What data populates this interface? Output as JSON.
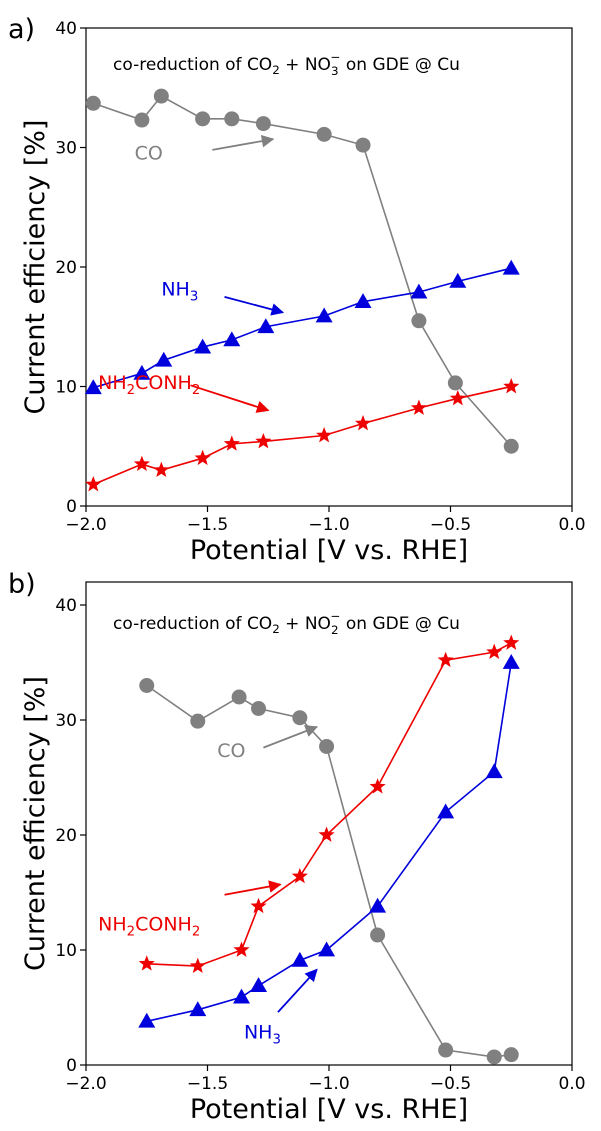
{
  "chart_data": [
    {
      "type": "line",
      "panel_label": "a)",
      "title_parts": [
        "co-reduction of CO",
        "2",
        " + NO",
        "3",
        "−",
        " on GDE @ Cu"
      ],
      "xlabel": "Potential [V vs. RHE]",
      "ylabel": "Current efficiency [%]",
      "xlim": [
        -2.0,
        0.0
      ],
      "ylim": [
        0,
        40
      ],
      "xticks": [
        -2.0,
        -1.5,
        -1.0,
        -0.5,
        0.0
      ],
      "xtick_labels": [
        "−2.0",
        "−1.5",
        "−1.0",
        "−0.5",
        "0.0"
      ],
      "yticks": [
        0,
        10,
        20,
        30,
        40
      ],
      "ytick_labels": [
        "0",
        "10",
        "20",
        "30",
        "40"
      ],
      "series": [
        {
          "label": "CO",
          "color": "#808080",
          "marker": "circle",
          "x": [
            -1.97,
            -1.77,
            -1.69,
            -1.52,
            -1.4,
            -1.27,
            -1.02,
            -0.86,
            -0.63,
            -0.48,
            -0.25
          ],
          "y": [
            33.7,
            32.3,
            34.3,
            32.4,
            32.4,
            32.0,
            31.1,
            30.2,
            15.5,
            10.3,
            5.0
          ],
          "label_pos": [
            -1.8,
            29.0
          ],
          "arrow": [
            [
              -1.48,
              29.8
            ],
            [
              -1.23,
              30.7
            ]
          ]
        },
        {
          "label_parts": [
            "NH",
            "3",
            ""
          ],
          "color": "#0000dd",
          "marker": "triangle",
          "x": [
            -1.97,
            -1.77,
            -1.68,
            -1.52,
            -1.4,
            -1.26,
            -1.02,
            -0.86,
            -0.63,
            -0.47,
            -0.25
          ],
          "y": [
            9.9,
            11.1,
            12.2,
            13.3,
            13.9,
            15.0,
            15.9,
            17.1,
            17.9,
            18.8,
            19.9
          ],
          "label_pos": [
            -1.69,
            17.6
          ],
          "arrow": [
            [
              -1.43,
              17.5
            ],
            [
              -1.19,
              16.2
            ]
          ]
        },
        {
          "label_parts": [
            "NH",
            "2",
            "CONH",
            "2",
            ""
          ],
          "color": "#ee0000",
          "marker": "star",
          "x": [
            -1.97,
            -1.77,
            -1.69,
            -1.52,
            -1.4,
            -1.27,
            -1.02,
            -0.86,
            -0.63,
            -0.47,
            -0.25
          ],
          "y": [
            1.8,
            3.5,
            3.0,
            4.0,
            5.2,
            5.4,
            5.9,
            6.9,
            8.2,
            9.0,
            10.0
          ],
          "label_pos": [
            -1.95,
            9.8
          ],
          "arrow": [
            [
              -1.57,
              10.1
            ],
            [
              -1.25,
              8.0
            ]
          ]
        }
      ]
    },
    {
      "type": "line",
      "panel_label": "b)",
      "title_parts": [
        "co-reduction of CO",
        "2",
        " + NO",
        "2",
        "−",
        " on GDE @ Cu"
      ],
      "xlabel": "Potential [V vs. RHE]",
      "ylabel": "Current efficiency [%]",
      "xlim": [
        -2.0,
        0.0
      ],
      "ylim": [
        0,
        42
      ],
      "xticks": [
        -2.0,
        -1.5,
        -1.0,
        -0.5,
        0.0
      ],
      "xtick_labels": [
        "−2.0",
        "−1.5",
        "−1.0",
        "−0.5",
        "0.0"
      ],
      "yticks": [
        0,
        10,
        20,
        30,
        40
      ],
      "ytick_labels": [
        "0",
        "10",
        "20",
        "30",
        "40"
      ],
      "series": [
        {
          "label": "CO",
          "color": "#808080",
          "marker": "circle",
          "x": [
            -1.75,
            -1.54,
            -1.37,
            -1.29,
            -1.12,
            -1.01,
            -0.8,
            -0.52,
            -0.32,
            -0.25
          ],
          "y": [
            33.0,
            29.9,
            32.0,
            31.0,
            30.2,
            27.7,
            11.3,
            1.3,
            0.7,
            0.9
          ],
          "label_pos": [
            -1.46,
            26.8
          ],
          "arrow": [
            [
              -1.27,
              27.6
            ],
            [
              -1.05,
              29.4
            ]
          ]
        },
        {
          "label_parts": [
            "NH",
            "2",
            "CONH",
            "2",
            ""
          ],
          "color": "#ee0000",
          "marker": "star",
          "x": [
            -1.75,
            -1.54,
            -1.36,
            -1.29,
            -1.12,
            -1.01,
            -0.8,
            -0.52,
            -0.32,
            -0.25
          ],
          "y": [
            8.8,
            8.6,
            10.0,
            13.8,
            16.4,
            20.0,
            24.2,
            35.2,
            35.9,
            36.7
          ],
          "label_pos": [
            -1.95,
            11.7
          ],
          "arrow": [
            [
              -1.43,
              14.8
            ],
            [
              -1.2,
              15.7
            ]
          ]
        },
        {
          "label_parts": [
            "NH",
            "3",
            ""
          ],
          "color": "#0000dd",
          "marker": "triangle",
          "x": [
            -1.75,
            -1.54,
            -1.36,
            -1.29,
            -1.12,
            -1.01,
            -0.8,
            -0.52,
            -0.32,
            -0.25
          ],
          "y": [
            3.8,
            4.8,
            5.9,
            6.9,
            9.1,
            10.0,
            13.8,
            22.0,
            25.5,
            35.0
          ],
          "label_pos": [
            -1.35,
            2.3
          ],
          "arrow": [
            [
              -1.21,
              4.6
            ],
            [
              -1.05,
              8.3
            ]
          ]
        }
      ]
    }
  ]
}
